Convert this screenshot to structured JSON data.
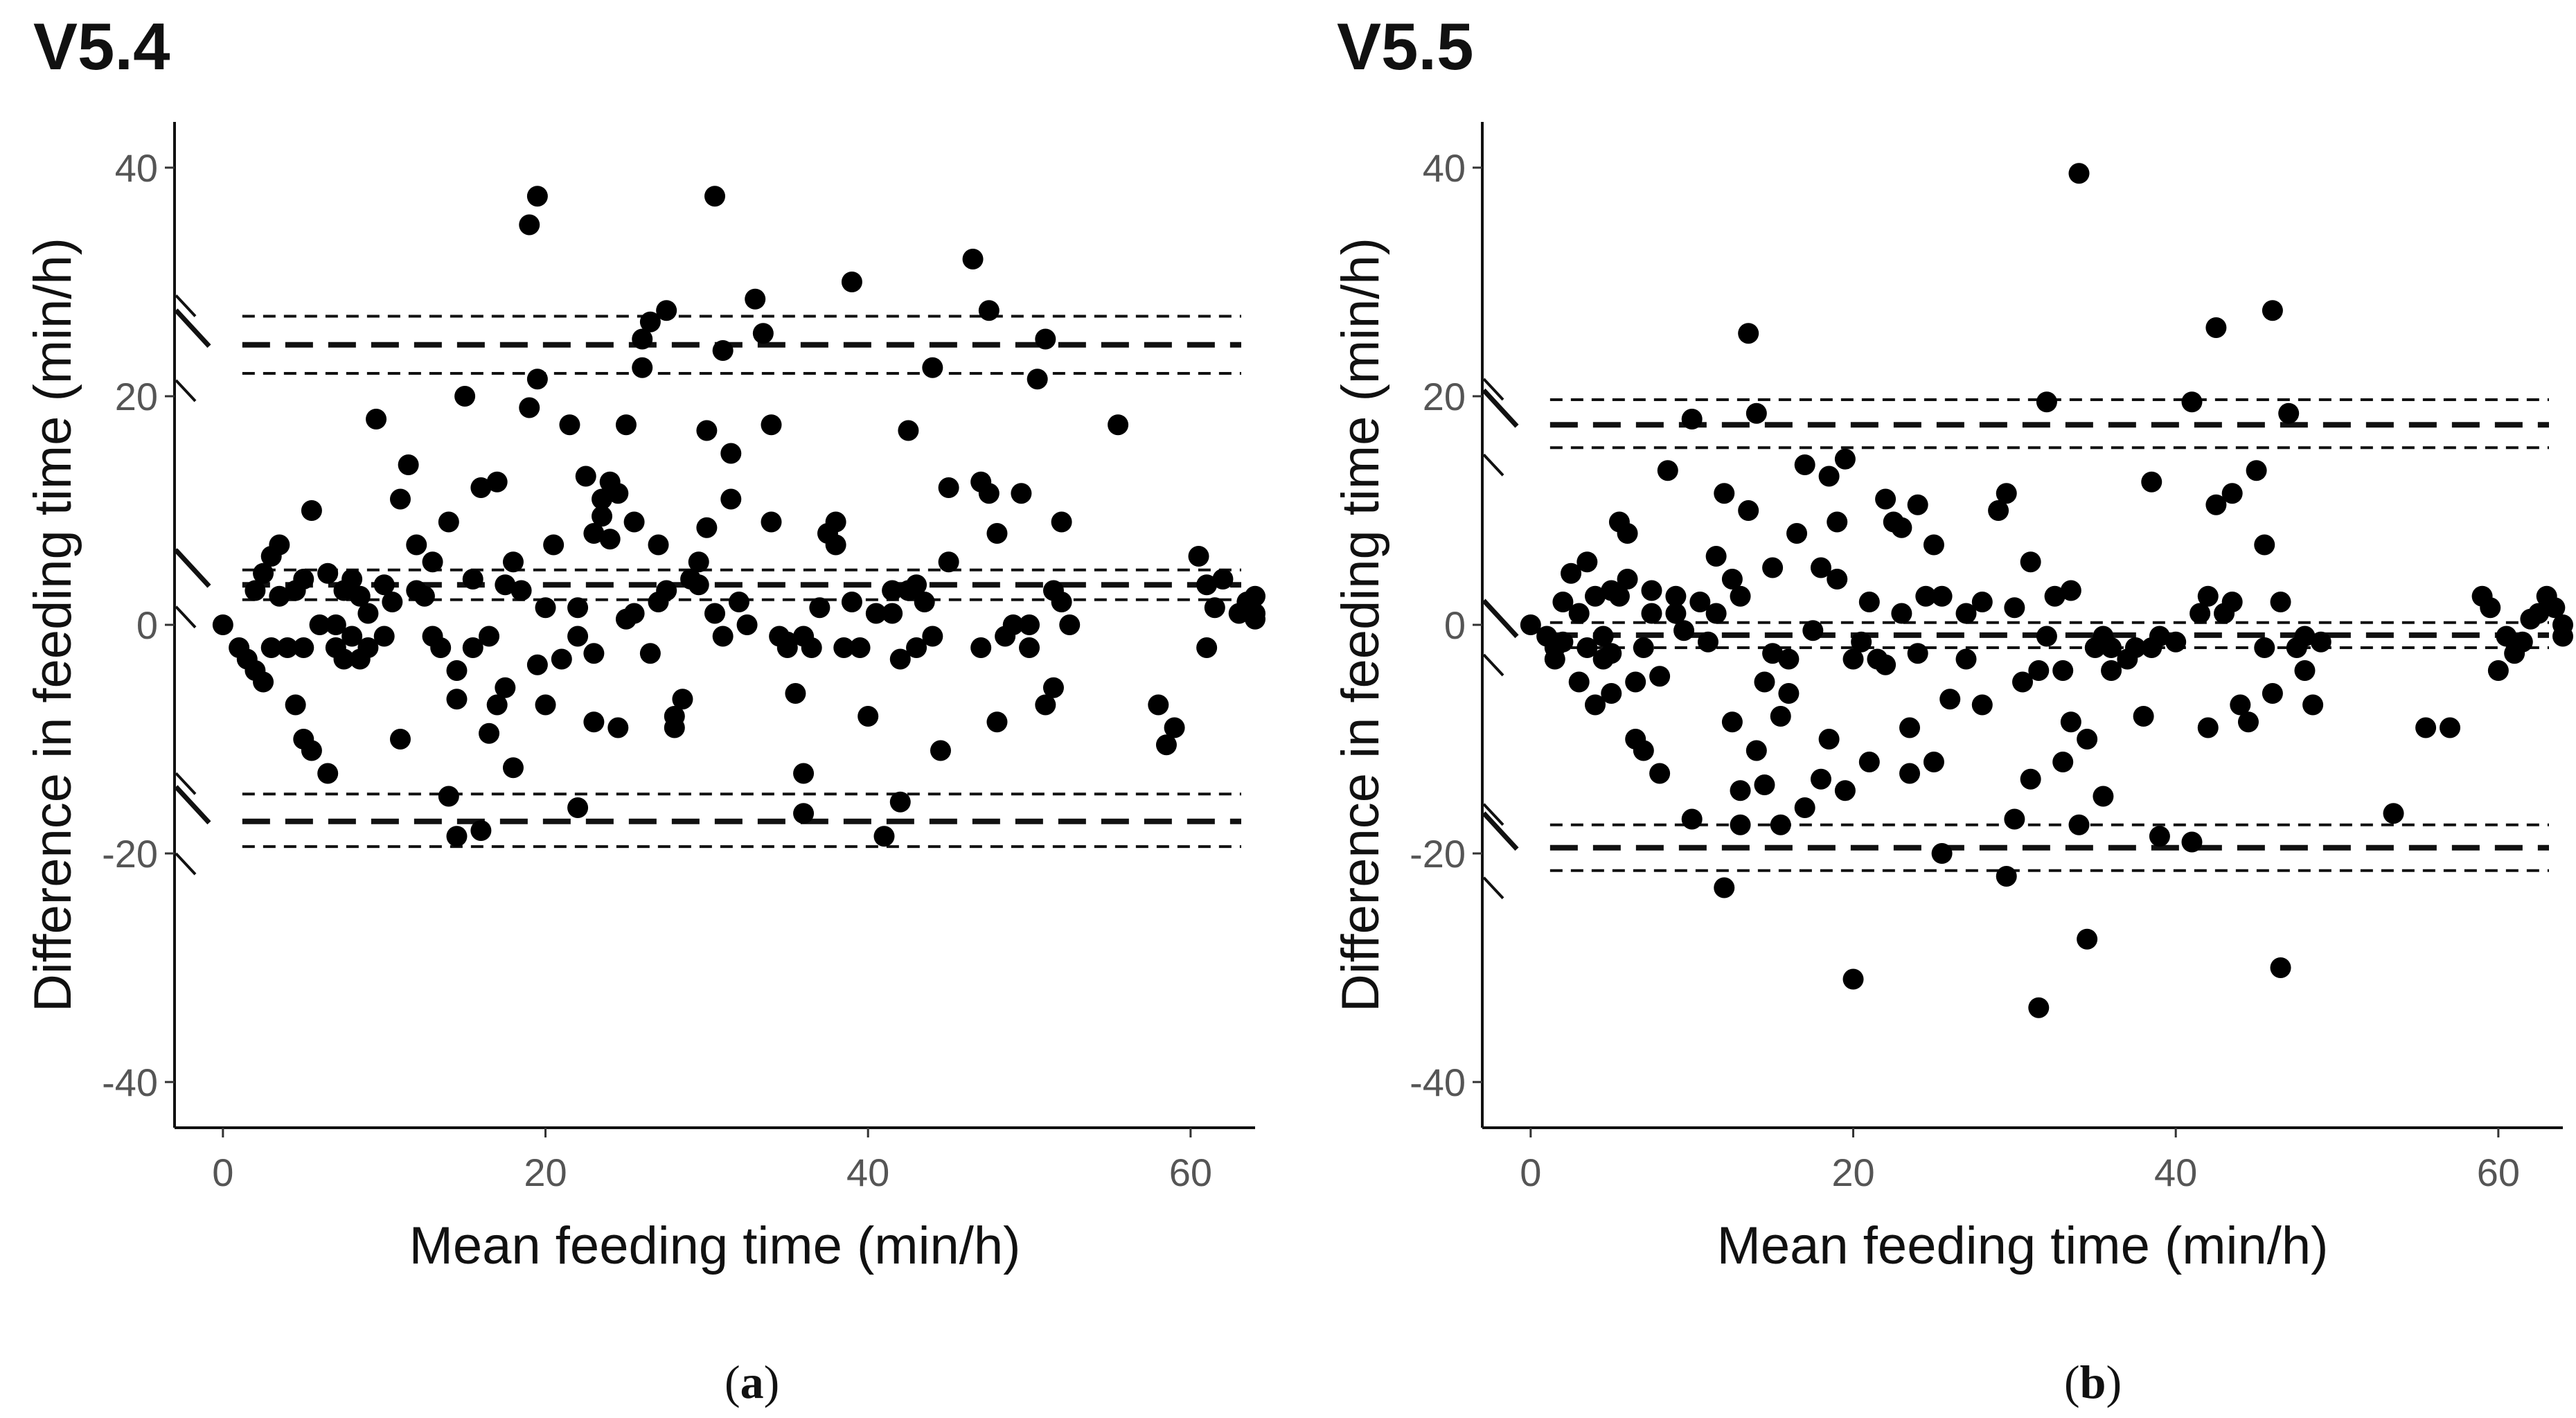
{
  "chart_data": [
    {
      "type": "scatter",
      "title": "V5.4",
      "caption_letter": "a",
      "xlabel": "Mean feeding time (min/h)",
      "ylabel": "Difference in feeding time (min/h)",
      "xlim": [
        -3,
        64
      ],
      "ylim": [
        -44,
        44
      ],
      "xticks": [
        0,
        20,
        40,
        60
      ],
      "yticks": [
        -40,
        -20,
        0,
        20,
        40
      ],
      "xtick_labels": [
        "0",
        "20",
        "40",
        "60"
      ],
      "ytick_labels": [
        "-40",
        "-20",
        "0",
        "20",
        "40"
      ],
      "reference_lines": {
        "upper_loa": {
          "value": 24.5,
          "ci": [
            22.0,
            27.0
          ]
        },
        "mean_bias": {
          "value": 3.5,
          "ci": [
            2.2,
            4.8
          ]
        },
        "lower_loa": {
          "value": -17.2,
          "ci": [
            -19.4,
            -14.8
          ]
        }
      },
      "points": [
        [
          0,
          0
        ],
        [
          1,
          -2
        ],
        [
          1.5,
          -3
        ],
        [
          2,
          -4
        ],
        [
          2.5,
          -5
        ],
        [
          2,
          3
        ],
        [
          2.5,
          4.5
        ],
        [
          3,
          6
        ],
        [
          3.5,
          7
        ],
        [
          3,
          -2
        ],
        [
          3.5,
          2.5
        ],
        [
          4,
          -2
        ],
        [
          4.5,
          3
        ],
        [
          4.5,
          -7
        ],
        [
          5,
          -10
        ],
        [
          5.5,
          -11
        ],
        [
          5,
          4
        ],
        [
          5.5,
          10
        ],
        [
          5,
          -2
        ],
        [
          6,
          0
        ],
        [
          6.5,
          -13
        ],
        [
          6.5,
          4.5
        ],
        [
          7,
          -2
        ],
        [
          7.5,
          3
        ],
        [
          7,
          0
        ],
        [
          7.5,
          -3
        ],
        [
          8,
          -1
        ],
        [
          8,
          4
        ],
        [
          8.5,
          2.5
        ],
        [
          8.5,
          -3
        ],
        [
          9,
          -2
        ],
        [
          9,
          1
        ],
        [
          9.5,
          18
        ],
        [
          10,
          3.5
        ],
        [
          10,
          -1
        ],
        [
          10.5,
          2
        ],
        [
          11,
          11
        ],
        [
          11.5,
          14
        ],
        [
          11,
          -10
        ],
        [
          12,
          7
        ],
        [
          12,
          3
        ],
        [
          12.5,
          2.5
        ],
        [
          13,
          -1
        ],
        [
          13.5,
          -2
        ],
        [
          13,
          5.5
        ],
        [
          14,
          -15
        ],
        [
          14,
          9
        ],
        [
          14.5,
          -4
        ],
        [
          14.5,
          -6.5
        ],
        [
          14.5,
          -18.5
        ],
        [
          15,
          20
        ],
        [
          15.5,
          4
        ],
        [
          15.5,
          -2
        ],
        [
          16,
          12
        ],
        [
          16,
          -18
        ],
        [
          16.5,
          -9.5
        ],
        [
          16.5,
          -1
        ],
        [
          17,
          12.5
        ],
        [
          17,
          -7
        ],
        [
          17.5,
          3.5
        ],
        [
          17.5,
          -5.5
        ],
        [
          18,
          5.5
        ],
        [
          18,
          -12.5
        ],
        [
          18.5,
          3
        ],
        [
          19,
          19
        ],
        [
          19.5,
          21.5
        ],
        [
          19.5,
          37.5
        ],
        [
          19,
          35
        ],
        [
          19.5,
          -3.5
        ],
        [
          20,
          -7
        ],
        [
          20,
          1.5
        ],
        [
          20.5,
          7
        ],
        [
          21,
          -3
        ],
        [
          21.5,
          17.5
        ],
        [
          22,
          -16
        ],
        [
          22,
          -1
        ],
        [
          22,
          1.5
        ],
        [
          22.5,
          13
        ],
        [
          23,
          8
        ],
        [
          23,
          -8.5
        ],
        [
          23,
          -2.5
        ],
        [
          23.5,
          11
        ],
        [
          23.5,
          9.5
        ],
        [
          24,
          7.5
        ],
        [
          24,
          12.5
        ],
        [
          24.5,
          11.5
        ],
        [
          24.5,
          -9
        ],
        [
          25,
          17.5
        ],
        [
          25,
          0.5
        ],
        [
          25.5,
          9
        ],
        [
          25.5,
          1
        ],
        [
          26,
          22.5
        ],
        [
          26,
          25
        ],
        [
          26.5,
          26.5
        ],
        [
          26.5,
          -2.5
        ],
        [
          27,
          7
        ],
        [
          27,
          2
        ],
        [
          27.5,
          27.5
        ],
        [
          27.5,
          3
        ],
        [
          28,
          -8
        ],
        [
          28,
          -9
        ],
        [
          28.5,
          -6.5
        ],
        [
          29,
          4
        ],
        [
          29.5,
          3.5
        ],
        [
          29.5,
          5.5
        ],
        [
          30,
          17
        ],
        [
          30,
          8.5
        ],
        [
          30.5,
          37.5
        ],
        [
          30.5,
          1
        ],
        [
          31,
          24
        ],
        [
          31,
          -1
        ],
        [
          31.5,
          15
        ],
        [
          31.5,
          11
        ],
        [
          32,
          2
        ],
        [
          32.5,
          0
        ],
        [
          33,
          28.5
        ],
        [
          33.5,
          25.5
        ],
        [
          34,
          17.5
        ],
        [
          34,
          9
        ],
        [
          34.5,
          -1
        ],
        [
          35,
          -1.5
        ],
        [
          35,
          -2
        ],
        [
          35.5,
          -6
        ],
        [
          36,
          -13
        ],
        [
          36,
          -16.5
        ],
        [
          36,
          -1
        ],
        [
          36.5,
          -2
        ],
        [
          37,
          1.5
        ],
        [
          37.5,
          8
        ],
        [
          38,
          7
        ],
        [
          38,
          9
        ],
        [
          38.5,
          -2
        ],
        [
          39,
          30
        ],
        [
          39,
          2
        ],
        [
          39.5,
          -2
        ],
        [
          40,
          -8
        ],
        [
          40.5,
          1
        ],
        [
          41,
          -18.5
        ],
        [
          41.5,
          3
        ],
        [
          41.5,
          1
        ],
        [
          42,
          -15.5
        ],
        [
          42,
          -3
        ],
        [
          42.5,
          17
        ],
        [
          42.5,
          3
        ],
        [
          43,
          3.5
        ],
        [
          43,
          -2
        ],
        [
          43.5,
          2
        ],
        [
          44,
          -1
        ],
        [
          44,
          22.5
        ],
        [
          44.5,
          -11
        ],
        [
          45,
          12
        ],
        [
          45,
          5.5
        ],
        [
          46.5,
          32
        ],
        [
          47,
          -2
        ],
        [
          47,
          12.5
        ],
        [
          47.5,
          27.5
        ],
        [
          47.5,
          11.5
        ],
        [
          48,
          -8.5
        ],
        [
          48,
          8
        ],
        [
          48.5,
          -1
        ],
        [
          49,
          0
        ],
        [
          49.5,
          11.5
        ],
        [
          50,
          -2
        ],
        [
          50,
          0
        ],
        [
          50.5,
          21.5
        ],
        [
          51,
          25
        ],
        [
          51,
          -7
        ],
        [
          51.5,
          3
        ],
        [
          51.5,
          -5.5
        ],
        [
          52,
          2
        ],
        [
          52,
          9
        ],
        [
          52.5,
          0
        ],
        [
          55.5,
          17.5
        ],
        [
          58,
          -7
        ],
        [
          58.5,
          -10.5
        ],
        [
          59,
          -9
        ],
        [
          60.5,
          6
        ],
        [
          61,
          -2
        ],
        [
          61,
          3.5
        ],
        [
          61.5,
          1.5
        ],
        [
          62,
          4
        ],
        [
          63,
          1
        ],
        [
          63.5,
          2
        ],
        [
          64,
          0.5
        ],
        [
          64,
          1
        ],
        [
          64,
          2.5
        ]
      ]
    },
    {
      "type": "scatter",
      "title": "V5.5",
      "caption_letter": "b",
      "xlabel": "Mean feeding time (min/h)",
      "ylabel": "Difference in feeding time (min/h)",
      "xlim": [
        -3,
        64
      ],
      "ylim": [
        -44,
        44
      ],
      "xticks": [
        0,
        20,
        40,
        60
      ],
      "yticks": [
        -40,
        -20,
        0,
        20,
        40
      ],
      "xtick_labels": [
        "0",
        "20",
        "40",
        "60"
      ],
      "ytick_labels": [
        "-40",
        "-20",
        "0",
        "20",
        "40"
      ],
      "reference_lines": {
        "upper_loa": {
          "value": 17.5,
          "ci": [
            15.5,
            19.7
          ]
        },
        "mean_bias": {
          "value": -0.9,
          "ci": [
            -2.0,
            0.2
          ]
        },
        "lower_loa": {
          "value": -19.5,
          "ci": [
            -21.5,
            -17.5
          ]
        }
      },
      "points": [
        [
          0,
          0
        ],
        [
          1,
          -1
        ],
        [
          1.5,
          -2
        ],
        [
          1.5,
          -3
        ],
        [
          2,
          -1.5
        ],
        [
          2,
          2
        ],
        [
          2.5,
          4.5
        ],
        [
          3,
          -5
        ],
        [
          3,
          1
        ],
        [
          3.5,
          5.5
        ],
        [
          3.5,
          -2
        ],
        [
          4,
          2.5
        ],
        [
          4,
          -7
        ],
        [
          4.5,
          -1
        ],
        [
          4.5,
          -3
        ],
        [
          5,
          -6
        ],
        [
          5,
          3
        ],
        [
          5.5,
          9
        ],
        [
          5.5,
          2.5
        ],
        [
          5,
          -2.5
        ],
        [
          6,
          8
        ],
        [
          6,
          4
        ],
        [
          6.5,
          -10
        ],
        [
          6.5,
          -5
        ],
        [
          7,
          -11
        ],
        [
          7,
          -2
        ],
        [
          7.5,
          3
        ],
        [
          7.5,
          1
        ],
        [
          8,
          -13
        ],
        [
          8,
          -4.5
        ],
        [
          8.5,
          13.5
        ],
        [
          9,
          1
        ],
        [
          9,
          2.5
        ],
        [
          9.5,
          -0.5
        ],
        [
          10,
          -17
        ],
        [
          10,
          18
        ],
        [
          10.5,
          2
        ],
        [
          11,
          -1.5
        ],
        [
          11.5,
          6
        ],
        [
          11.5,
          1
        ],
        [
          12,
          -23
        ],
        [
          12,
          11.5
        ],
        [
          12.5,
          4
        ],
        [
          12.5,
          -8.5
        ],
        [
          13,
          -17.5
        ],
        [
          13,
          -14.5
        ],
        [
          13,
          2.5
        ],
        [
          13.5,
          25.5
        ],
        [
          13.5,
          10
        ],
        [
          14,
          18.5
        ],
        [
          14,
          -11
        ],
        [
          14.5,
          -14
        ],
        [
          14.5,
          -5
        ],
        [
          15,
          -2.5
        ],
        [
          15,
          5
        ],
        [
          15.5,
          -17.5
        ],
        [
          15.5,
          -8
        ],
        [
          16,
          -6
        ],
        [
          16,
          -3
        ],
        [
          16.5,
          8
        ],
        [
          17,
          14
        ],
        [
          17,
          -16
        ],
        [
          17.5,
          -0.5
        ],
        [
          18,
          5
        ],
        [
          18,
          -13.5
        ],
        [
          18.5,
          -10
        ],
        [
          18.5,
          13
        ],
        [
          19,
          4
        ],
        [
          19,
          9
        ],
        [
          19.5,
          14.5
        ],
        [
          19.5,
          -14.5
        ],
        [
          20,
          -31
        ],
        [
          20,
          -3
        ],
        [
          20.5,
          -1.5
        ],
        [
          21,
          -12
        ],
        [
          21,
          2
        ],
        [
          21.5,
          -3
        ],
        [
          22,
          11
        ],
        [
          22,
          -3.5
        ],
        [
          22.5,
          9
        ],
        [
          23,
          1
        ],
        [
          23,
          8.5
        ],
        [
          23.5,
          -9
        ],
        [
          23.5,
          -13
        ],
        [
          24,
          10.5
        ],
        [
          24,
          -2.5
        ],
        [
          24.5,
          2.5
        ],
        [
          25,
          7
        ],
        [
          25,
          -12
        ],
        [
          25.5,
          -20
        ],
        [
          25.5,
          2.5
        ],
        [
          26,
          -6.5
        ],
        [
          27,
          1
        ],
        [
          27,
          -3
        ],
        [
          28,
          2
        ],
        [
          28,
          -7
        ],
        [
          29,
          10
        ],
        [
          29.5,
          11.5
        ],
        [
          29.5,
          -22
        ],
        [
          30,
          -17
        ],
        [
          30,
          1.5
        ],
        [
          30.5,
          -5
        ],
        [
          31,
          -13.5
        ],
        [
          31,
          5.5
        ],
        [
          31.5,
          -33.5
        ],
        [
          31.5,
          -4
        ],
        [
          32,
          19.5
        ],
        [
          32,
          -1
        ],
        [
          32.5,
          2.5
        ],
        [
          33,
          -12
        ],
        [
          33,
          -4
        ],
        [
          33.5,
          -8.5
        ],
        [
          33.5,
          3
        ],
        [
          34,
          39.5
        ],
        [
          34,
          -17.5
        ],
        [
          34.5,
          -27.5
        ],
        [
          34.5,
          -10
        ],
        [
          35,
          -2
        ],
        [
          35.5,
          -15
        ],
        [
          35.5,
          -1
        ],
        [
          36,
          -4
        ],
        [
          36,
          -2
        ],
        [
          37,
          -3
        ],
        [
          37.5,
          -2
        ],
        [
          38,
          -8
        ],
        [
          38.5,
          12.5
        ],
        [
          38.5,
          -2
        ],
        [
          39,
          -18.5
        ],
        [
          39,
          -1
        ],
        [
          40,
          -1.5
        ],
        [
          41,
          -19
        ],
        [
          41,
          19.5
        ],
        [
          41.5,
          1
        ],
        [
          42,
          -9
        ],
        [
          42,
          2.5
        ],
        [
          42.5,
          26
        ],
        [
          42.5,
          10.5
        ],
        [
          43,
          1
        ],
        [
          43.5,
          11.5
        ],
        [
          43.5,
          2
        ],
        [
          44,
          -7
        ],
        [
          44.5,
          -8.5
        ],
        [
          45,
          13.5
        ],
        [
          45.5,
          -2
        ],
        [
          45.5,
          7
        ],
        [
          46,
          -6
        ],
        [
          46,
          27.5
        ],
        [
          46.5,
          -30
        ],
        [
          46.5,
          2
        ],
        [
          47,
          18.5
        ],
        [
          47.5,
          -2
        ],
        [
          48,
          -4
        ],
        [
          48,
          -1
        ],
        [
          48.5,
          -7
        ],
        [
          49,
          -1.5
        ],
        [
          53.5,
          -16.5
        ],
        [
          55.5,
          -9
        ],
        [
          57,
          -9
        ],
        [
          59,
          2.5
        ],
        [
          59.5,
          1.5
        ],
        [
          60,
          -4
        ],
        [
          60.5,
          -1
        ],
        [
          61,
          -2.5
        ],
        [
          61.5,
          -1.5
        ],
        [
          62,
          0.5
        ],
        [
          62.5,
          1
        ],
        [
          63,
          2.5
        ],
        [
          63.5,
          1.5
        ],
        [
          64,
          -1
        ],
        [
          64,
          0
        ]
      ]
    }
  ]
}
